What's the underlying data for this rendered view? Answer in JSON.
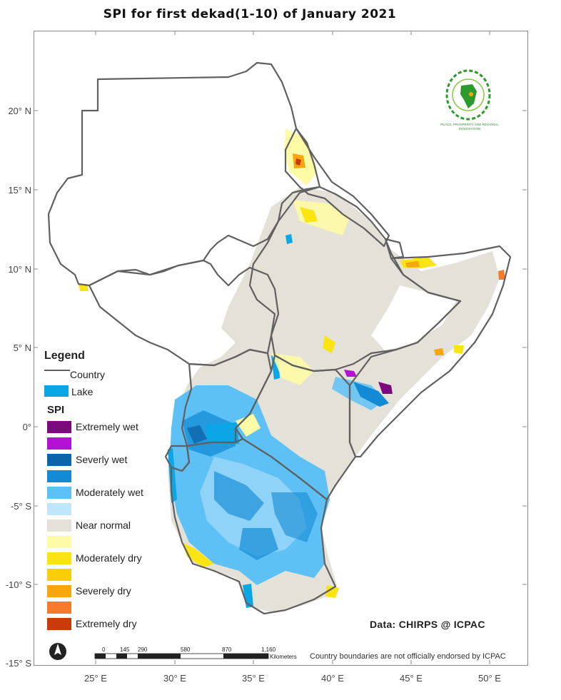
{
  "title": "SPI for  first dekad(1-10)  of January 2021",
  "lat_labels": [
    "20° N",
    "15° N",
    "10° N",
    "5° N",
    "0°",
    "-5° S",
    "-10° S",
    "-15° S"
  ],
  "lon_labels": [
    "25° E",
    "30° E",
    "35° E",
    "40° E",
    "45° E",
    "50° E"
  ],
  "legend": {
    "heading": "Legend",
    "country_label": "Country",
    "lake_label": "Lake",
    "spi_heading": "SPI",
    "classes": [
      {
        "label": "Extremely wet",
        "color": "#7a0a7e"
      },
      {
        "label": "",
        "color": "#b510d6"
      },
      {
        "label": "Severly wet",
        "color": "#0c64aa"
      },
      {
        "label": "",
        "color": "#128bd4"
      },
      {
        "label": "Moderately wet",
        "color": "#5ec1f5"
      },
      {
        "label": "",
        "color": "#bfe6fb"
      },
      {
        "label": "Near normal",
        "color": "#e4e1d9"
      },
      {
        "label": "",
        "color": "#fdfba6"
      },
      {
        "label": "Moderately dry",
        "color": "#fbe414"
      },
      {
        "label": "",
        "color": "#f8cf07"
      },
      {
        "label": "Severely dry",
        "color": "#f5a70c"
      },
      {
        "label": "",
        "color": "#f57a2c"
      },
      {
        "label": "Extremely dry",
        "color": "#c83a0a"
      }
    ],
    "lake_color": "#0aa6e6",
    "country_line_color": "#606060"
  },
  "data_credit": "Data: CHIRPS @ ICPAC",
  "disclaimer": "Country boundaries are not officially endorsed by ICPAC",
  "scale_bar": {
    "ticks": [
      "0",
      "145",
      "290",
      "580",
      "870",
      "1,160"
    ],
    "unit": "Kilometers"
  },
  "logo": {
    "name": "IGAD",
    "tagline": "PEACE, PROSPERITY AND REGIONAL INTEGRATION",
    "color": "#2e9a2e"
  },
  "north_arrow": "N"
}
